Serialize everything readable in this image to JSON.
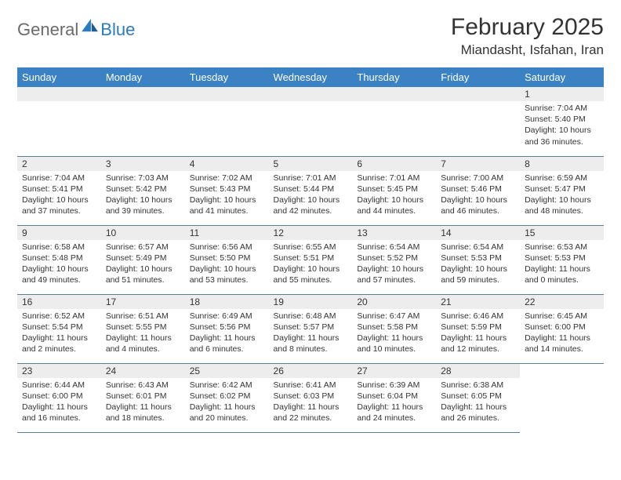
{
  "logo": {
    "word1": "General",
    "word2": "Blue"
  },
  "header": {
    "title": "February 2025",
    "location": "Miandasht, Isfahan, Iran"
  },
  "colors": {
    "header_bg": "#3a82c4",
    "daynum_bg": "#ededed",
    "rule": "#5a7a95"
  },
  "weekdays": [
    "Sunday",
    "Monday",
    "Tuesday",
    "Wednesday",
    "Thursday",
    "Friday",
    "Saturday"
  ],
  "first_weekday_index": 6,
  "days": [
    {
      "n": 1,
      "sr": "7:04 AM",
      "ss": "5:40 PM",
      "dl": "10 hours and 36 minutes."
    },
    {
      "n": 2,
      "sr": "7:04 AM",
      "ss": "5:41 PM",
      "dl": "10 hours and 37 minutes."
    },
    {
      "n": 3,
      "sr": "7:03 AM",
      "ss": "5:42 PM",
      "dl": "10 hours and 39 minutes."
    },
    {
      "n": 4,
      "sr": "7:02 AM",
      "ss": "5:43 PM",
      "dl": "10 hours and 41 minutes."
    },
    {
      "n": 5,
      "sr": "7:01 AM",
      "ss": "5:44 PM",
      "dl": "10 hours and 42 minutes."
    },
    {
      "n": 6,
      "sr": "7:01 AM",
      "ss": "5:45 PM",
      "dl": "10 hours and 44 minutes."
    },
    {
      "n": 7,
      "sr": "7:00 AM",
      "ss": "5:46 PM",
      "dl": "10 hours and 46 minutes."
    },
    {
      "n": 8,
      "sr": "6:59 AM",
      "ss": "5:47 PM",
      "dl": "10 hours and 48 minutes."
    },
    {
      "n": 9,
      "sr": "6:58 AM",
      "ss": "5:48 PM",
      "dl": "10 hours and 49 minutes."
    },
    {
      "n": 10,
      "sr": "6:57 AM",
      "ss": "5:49 PM",
      "dl": "10 hours and 51 minutes."
    },
    {
      "n": 11,
      "sr": "6:56 AM",
      "ss": "5:50 PM",
      "dl": "10 hours and 53 minutes."
    },
    {
      "n": 12,
      "sr": "6:55 AM",
      "ss": "5:51 PM",
      "dl": "10 hours and 55 minutes."
    },
    {
      "n": 13,
      "sr": "6:54 AM",
      "ss": "5:52 PM",
      "dl": "10 hours and 57 minutes."
    },
    {
      "n": 14,
      "sr": "6:54 AM",
      "ss": "5:53 PM",
      "dl": "10 hours and 59 minutes."
    },
    {
      "n": 15,
      "sr": "6:53 AM",
      "ss": "5:53 PM",
      "dl": "11 hours and 0 minutes."
    },
    {
      "n": 16,
      "sr": "6:52 AM",
      "ss": "5:54 PM",
      "dl": "11 hours and 2 minutes."
    },
    {
      "n": 17,
      "sr": "6:51 AM",
      "ss": "5:55 PM",
      "dl": "11 hours and 4 minutes."
    },
    {
      "n": 18,
      "sr": "6:49 AM",
      "ss": "5:56 PM",
      "dl": "11 hours and 6 minutes."
    },
    {
      "n": 19,
      "sr": "6:48 AM",
      "ss": "5:57 PM",
      "dl": "11 hours and 8 minutes."
    },
    {
      "n": 20,
      "sr": "6:47 AM",
      "ss": "5:58 PM",
      "dl": "11 hours and 10 minutes."
    },
    {
      "n": 21,
      "sr": "6:46 AM",
      "ss": "5:59 PM",
      "dl": "11 hours and 12 minutes."
    },
    {
      "n": 22,
      "sr": "6:45 AM",
      "ss": "6:00 PM",
      "dl": "11 hours and 14 minutes."
    },
    {
      "n": 23,
      "sr": "6:44 AM",
      "ss": "6:00 PM",
      "dl": "11 hours and 16 minutes."
    },
    {
      "n": 24,
      "sr": "6:43 AM",
      "ss": "6:01 PM",
      "dl": "11 hours and 18 minutes."
    },
    {
      "n": 25,
      "sr": "6:42 AM",
      "ss": "6:02 PM",
      "dl": "11 hours and 20 minutes."
    },
    {
      "n": 26,
      "sr": "6:41 AM",
      "ss": "6:03 PM",
      "dl": "11 hours and 22 minutes."
    },
    {
      "n": 27,
      "sr": "6:39 AM",
      "ss": "6:04 PM",
      "dl": "11 hours and 24 minutes."
    },
    {
      "n": 28,
      "sr": "6:38 AM",
      "ss": "6:05 PM",
      "dl": "11 hours and 26 minutes."
    }
  ],
  "labels": {
    "sunrise": "Sunrise:",
    "sunset": "Sunset:",
    "daylight": "Daylight:"
  }
}
